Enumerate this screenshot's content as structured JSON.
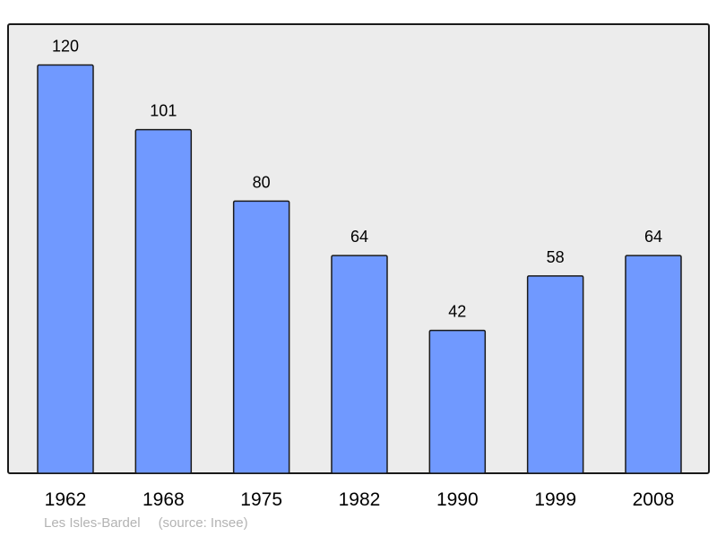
{
  "chart_data": {
    "type": "bar",
    "categories": [
      "1962",
      "1968",
      "1975",
      "1982",
      "1990",
      "1999",
      "2008"
    ],
    "values": [
      120,
      101,
      80,
      64,
      42,
      58,
      64
    ],
    "data_labels": [
      "120",
      "101",
      "80",
      "64",
      "42",
      "58",
      "64"
    ],
    "title": "",
    "xlabel": "",
    "ylabel": "",
    "ylim": [
      0,
      132
    ],
    "grid": false,
    "bar_color": "#7099ff",
    "plot_background": "#ececec"
  },
  "footer": {
    "place": "Les Isles-Bardel",
    "source": "(source: Insee)"
  }
}
